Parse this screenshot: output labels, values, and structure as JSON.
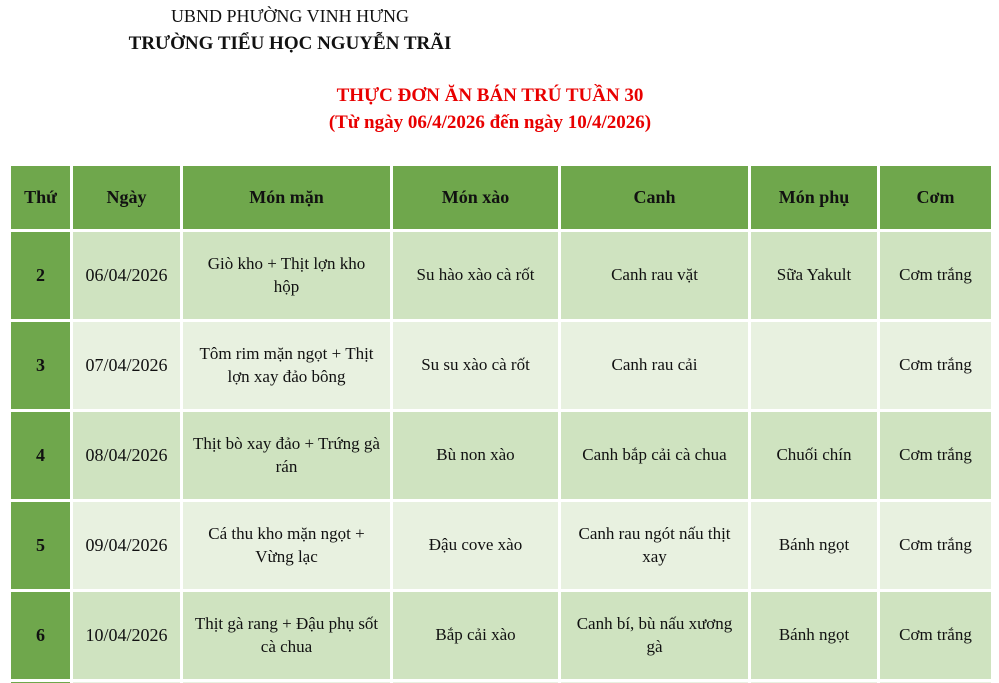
{
  "header": {
    "org_line1": "UBND PHƯỜNG VINH HƯNG",
    "org_line2": "TRƯỜNG TIỂU HỌC NGUYỄN TRÃI"
  },
  "title": {
    "line1": "THỰC ĐƠN ĂN BÁN TRÚ TUẦN 30",
    "line2": "(Từ ngày 06/4/2026 đến ngày 10/4/2026)"
  },
  "colors": {
    "header_green": "#6FA74C",
    "row_green": "#CFE3C0",
    "row_light_green": "#E8F1E0",
    "title_red": "#E80000",
    "grid_white": "#FFFFFF"
  },
  "table": {
    "headers": [
      "Thứ",
      "Ngày",
      "Món mặn",
      "Món xào",
      "Canh",
      "Món phụ",
      "Cơm"
    ],
    "rows": [
      {
        "cells": [
          "2",
          "06/04/2026",
          "Giò kho + Thịt lợn kho hộp",
          "Su hào xào cà rốt",
          "Canh rau vặt",
          "Sữa Yakult",
          "Cơm trắng"
        ]
      },
      {
        "cells": [
          "3",
          "07/04/2026",
          "Tôm rim mặn ngọt + Thịt lợn xay đảo bông",
          "Su su xào cà rốt",
          "Canh rau cải",
          "",
          "Cơm trắng"
        ]
      },
      {
        "cells": [
          "4",
          "08/04/2026",
          "Thịt bò xay đảo + Trứng gà rán",
          "Bù non xào",
          "Canh bắp cải cà chua",
          "Chuối chín",
          "Cơm trắng"
        ]
      },
      {
        "cells": [
          "5",
          "09/04/2026",
          "Cá thu kho mặn ngọt + Vừng lạc",
          "Đậu cove xào",
          "Canh rau ngót nấu thịt xay",
          "Bánh ngọt",
          "Cơm trắng"
        ]
      },
      {
        "cells": [
          "6",
          "10/04/2026",
          "Thịt gà rang + Đậu phụ sốt cà chua",
          "Bắp cải xào",
          "Canh bí, bù nấu xương gà",
          "Bánh ngọt",
          "Cơm trắng"
        ]
      }
    ]
  }
}
